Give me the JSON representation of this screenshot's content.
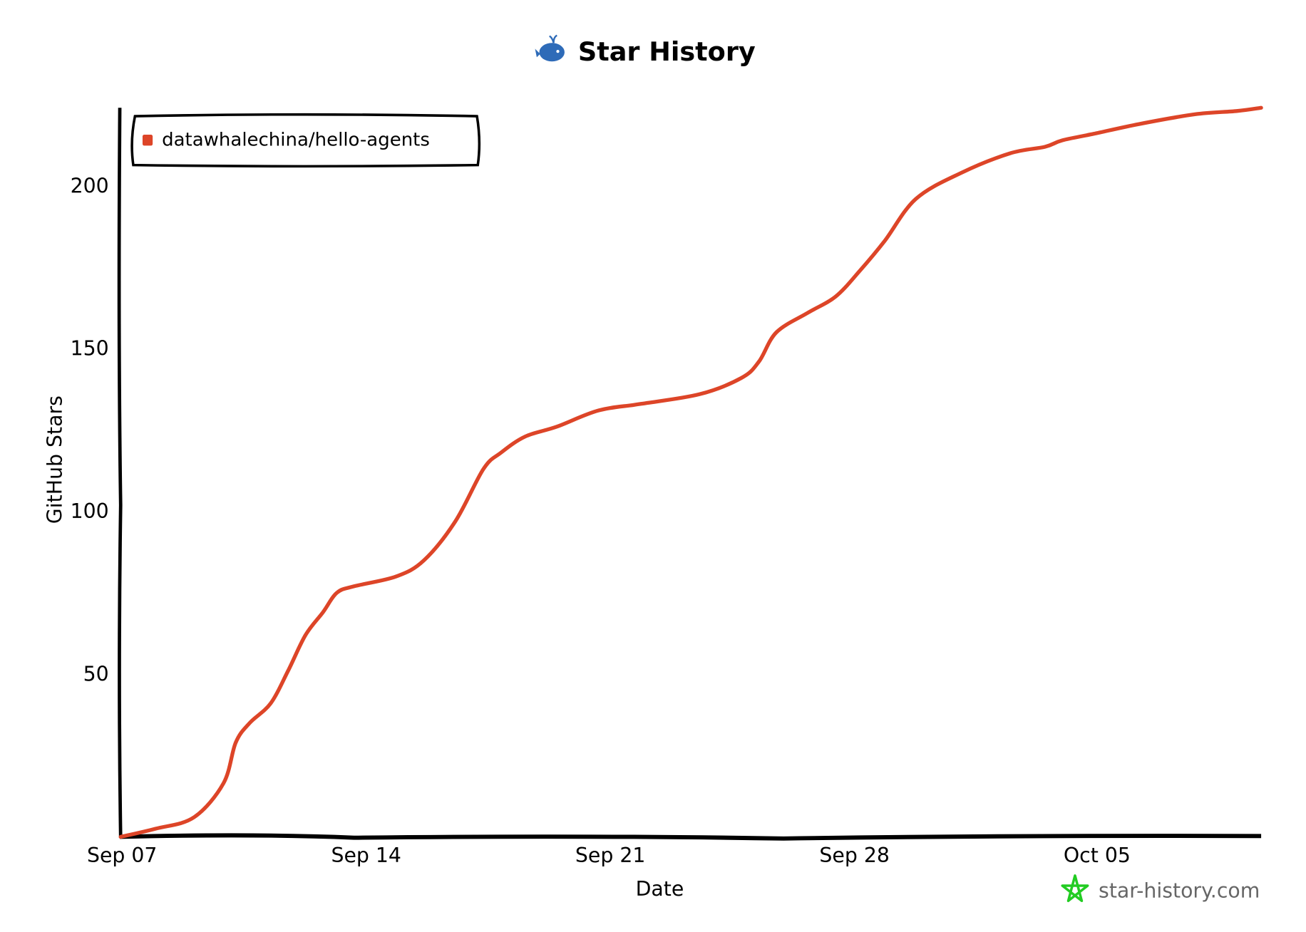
{
  "chart_data": {
    "type": "line",
    "title": "Star History",
    "xlabel": "Date",
    "ylabel": "GitHub Stars",
    "x_ticks": [
      "Sep 07",
      "Sep 14",
      "Sep 21",
      "Sep 28",
      "Oct 05"
    ],
    "x_tick_days": [
      0,
      7,
      14,
      21,
      28
    ],
    "y_ticks": [
      50,
      100,
      150,
      200
    ],
    "xlim_days": [
      0,
      32.7
    ],
    "ylim": [
      0,
      224
    ],
    "grid": false,
    "legend_position": "top-left",
    "series": [
      {
        "name": "datawhalechina/hello-agents",
        "color": "#dd4528",
        "x_days": [
          0,
          1,
          2.1,
          2.95,
          3.3,
          3.7,
          4.3,
          4.8,
          5.3,
          5.8,
          6.2,
          6.7,
          7.9,
          8.7,
          9.6,
          10.4,
          10.9,
          11.6,
          12.5,
          13.7,
          14.9,
          16.6,
          17.8,
          18.3,
          18.8,
          19.7,
          20.5,
          21.2,
          21.9,
          22.8,
          24.1,
          25.5,
          26.5,
          27,
          27.9,
          29.2,
          30.8,
          32,
          32.7
        ],
        "values": [
          0,
          2.5,
          6,
          16.5,
          29,
          35,
          41,
          51,
          62,
          69,
          75,
          77,
          80,
          85,
          97,
          113,
          118,
          123,
          126,
          131,
          133,
          136,
          141,
          146,
          155,
          161,
          166,
          174,
          183,
          196,
          204,
          210,
          212,
          214,
          216,
          219,
          222,
          223,
          224
        ]
      }
    ]
  },
  "watermark": "star-history.com",
  "colors": {
    "logo": "#2e6bb8",
    "watermark_star": "#22cc22",
    "axis": "#000000"
  }
}
